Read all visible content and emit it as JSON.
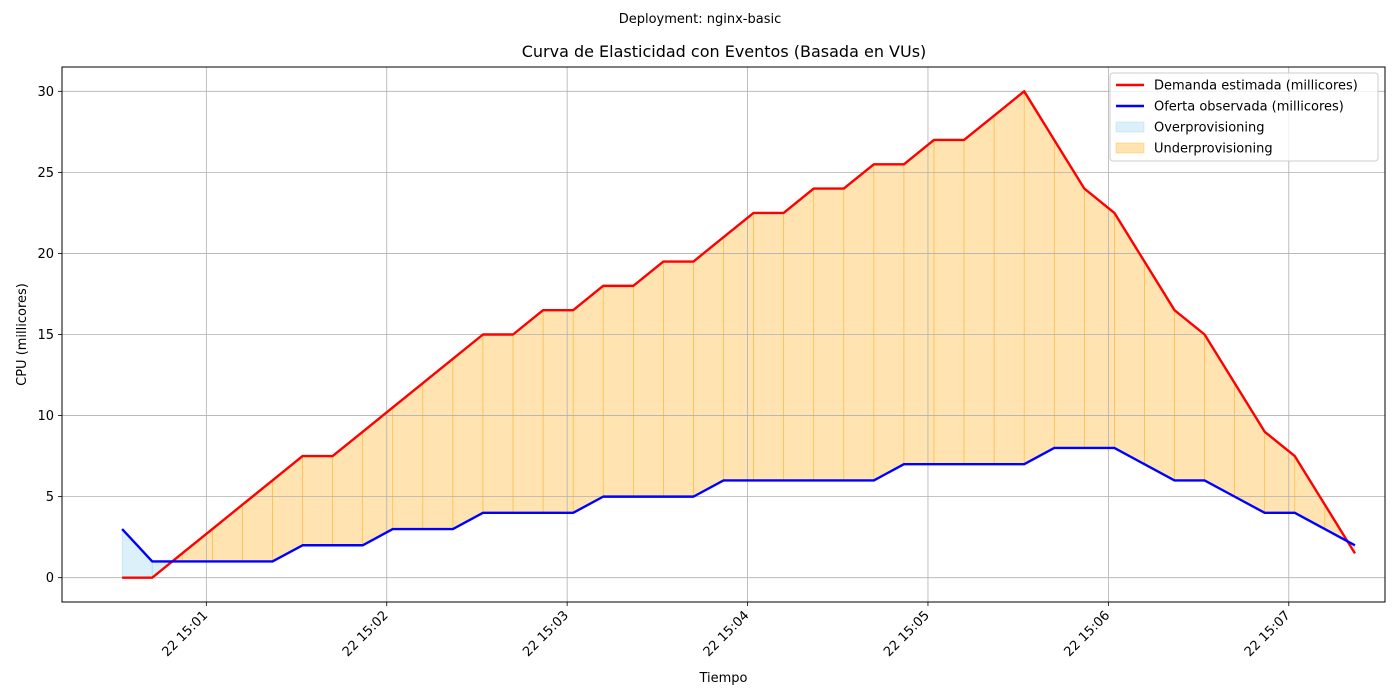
{
  "suptitle": "Deployment: nginx-basic",
  "chart_data": {
    "type": "line",
    "title": "Curva de Elasticidad con Eventos (Basada en VUs)",
    "xlabel": "Tiempo",
    "ylabel": "CPU (millicores)",
    "x_unit": "time",
    "x": [
      "15:00:32",
      "15:00:42",
      "15:00:52",
      "15:01:02",
      "15:01:12",
      "15:01:22",
      "15:01:32",
      "15:01:42",
      "15:01:52",
      "15:02:02",
      "15:02:12",
      "15:02:22",
      "15:02:32",
      "15:02:42",
      "15:02:52",
      "15:03:02",
      "15:03:12",
      "15:03:22",
      "15:03:32",
      "15:03:42",
      "15:03:52",
      "15:04:02",
      "15:04:12",
      "15:04:22",
      "15:04:32",
      "15:04:42",
      "15:04:52",
      "15:05:02",
      "15:05:12",
      "15:05:22",
      "15:05:32",
      "15:05:42",
      "15:05:52",
      "15:06:02",
      "15:06:12",
      "15:06:22",
      "15:06:32",
      "15:06:42",
      "15:06:52",
      "15:07:02",
      "15:07:12",
      "15:07:22"
    ],
    "series": [
      {
        "name": "Demanda estimada (millicores)",
        "color": "#ff0000",
        "values": [
          0,
          0,
          1.5,
          3,
          4.5,
          6,
          7.5,
          7.5,
          9,
          10.5,
          12,
          13.5,
          15,
          15,
          16.5,
          16.5,
          18,
          18,
          19.5,
          19.5,
          21,
          22.5,
          22.5,
          24,
          24,
          25.5,
          25.5,
          27,
          27,
          28.5,
          30,
          27,
          24,
          22.5,
          19.5,
          16.5,
          15,
          12,
          9,
          7.5,
          4.5,
          1.5
        ]
      },
      {
        "name": "Oferta observada (millicores)",
        "color": "#0000ff",
        "values": [
          3,
          1,
          1,
          1,
          1,
          1,
          2,
          2,
          2,
          3,
          3,
          3,
          4,
          4,
          4,
          4,
          5,
          5,
          5,
          5,
          6,
          6,
          6,
          6,
          6,
          6,
          7,
          7,
          7,
          7,
          7,
          8,
          8,
          8,
          7,
          6,
          6,
          5,
          4,
          4,
          3,
          2
        ]
      }
    ],
    "fills": [
      {
        "name": "Overprovisioning",
        "color": "#87ceeb"
      },
      {
        "name": "Underprovisioning",
        "color": "#ffa500"
      }
    ],
    "xticks": [
      "22 15:01",
      "22 15:02",
      "22 15:03",
      "22 15:04",
      "22 15:05",
      "22 15:06",
      "22 15:07"
    ],
    "yticks": [
      "0",
      "5",
      "10",
      "15",
      "20",
      "25",
      "30"
    ],
    "ylim": [
      -1.5,
      31.5
    ],
    "xlim": [
      "15:00:12",
      "15:07:32"
    ],
    "grid": true,
    "legend_position": "upper right"
  }
}
